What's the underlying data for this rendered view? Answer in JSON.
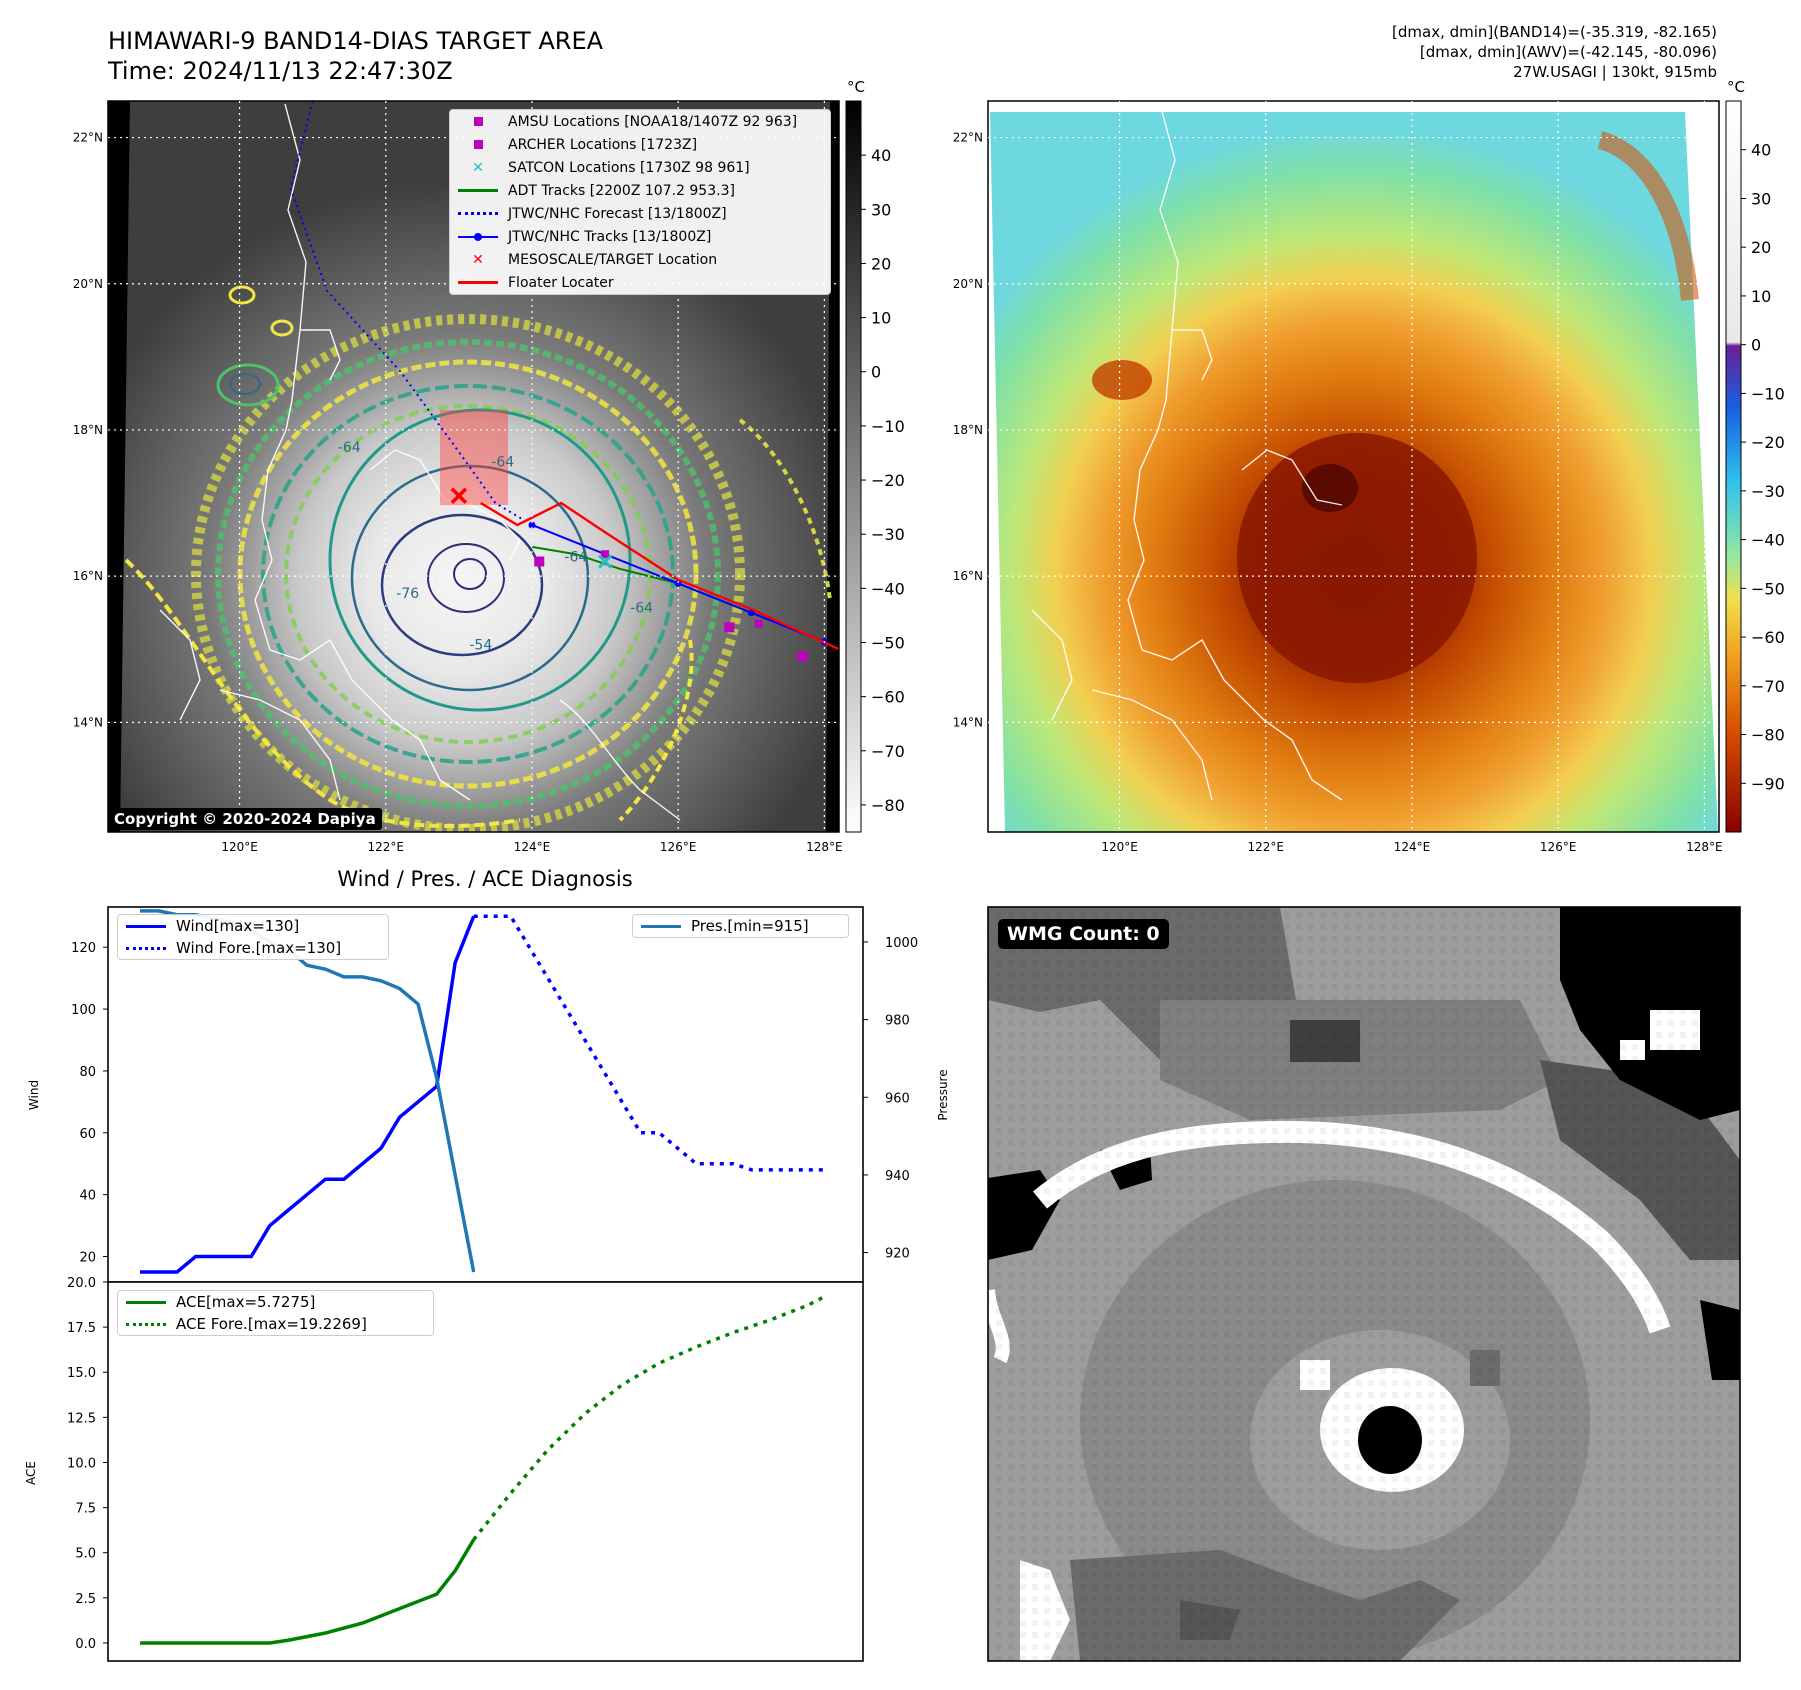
{
  "header": {
    "title_line1": "HIMAWARI-9 BAND14-DIAS TARGET AREA",
    "title_line2": "Time: 2024/11/13 22:47:30Z",
    "info_line1": "[dmax, dmin](BAND14)=(-35.319, -82.165)",
    "info_line2": "[dmax, dmin](AWV)=(-42.145, -80.096)",
    "info_line3": "27W.USAGI | 130kt, 915mb"
  },
  "map_axes": {
    "lon_labels": [
      "120°E",
      "122°E",
      "124°E",
      "126°E",
      "128°E"
    ],
    "lat_labels": [
      "22°N",
      "20°N",
      "18°N",
      "16°N",
      "14°N"
    ],
    "lon_range": [
      118.2,
      128.2
    ],
    "lat_range": [
      12.5,
      22.5
    ]
  },
  "ir_panel": {
    "colorbar_unit": "°C",
    "colorbar_ticks": [
      "40",
      "30",
      "20",
      "10",
      "0",
      "−10",
      "−20",
      "−30",
      "−40",
      "−50",
      "−60",
      "−70",
      "−80"
    ],
    "colorbar_range": [
      -85,
      50
    ],
    "copyright": "Copyright © 2020-2024 Dapiya",
    "legend": [
      {
        "label": "AMSU Locations [NOAA18/1407Z 92 963]",
        "symbol": "square",
        "color": "#c000c0"
      },
      {
        "label": "ARCHER Locations [1723Z]",
        "symbol": "square",
        "color": "#c000c0"
      },
      {
        "label": "SATCON Locations [1730Z 98 961]",
        "symbol": "x",
        "color": "#20c0c0"
      },
      {
        "label": "ADT Tracks [2200Z 107.2 953.3]",
        "symbol": "line",
        "color": "#008000"
      },
      {
        "label": "JTWC/NHC Forecast [13/1800Z]",
        "symbol": "dotted",
        "color": "#0000ff"
      },
      {
        "label": "JTWC/NHC Tracks [13/1800Z]",
        "symbol": "dotline",
        "color": "#0000ff"
      },
      {
        "label": "MESOSCALE/TARGET Location",
        "symbol": "x",
        "color": "#ff0000"
      },
      {
        "label": "Floater Locater",
        "symbol": "line",
        "color": "#ff0000"
      }
    ],
    "contour_labels": [
      "-64",
      "-64",
      "-64",
      "-76",
      "-54",
      "-64"
    ],
    "storm_center": {
      "lon": 124.0,
      "lat": 16.7
    },
    "forecast_track": [
      [
        121.0,
        22.5
      ],
      [
        120.7,
        21.3
      ],
      [
        121.2,
        19.9
      ],
      [
        122.2,
        18.8
      ],
      [
        123.0,
        17.7
      ],
      [
        123.5,
        17.0
      ],
      [
        124.0,
        16.7
      ]
    ],
    "jtwc_track": [
      [
        124.0,
        16.7
      ],
      [
        125.0,
        16.3
      ],
      [
        126.0,
        15.9
      ],
      [
        127.0,
        15.5
      ],
      [
        128.0,
        15.1
      ]
    ],
    "adt_track": [
      [
        124.0,
        16.4
      ],
      [
        124.6,
        16.3
      ],
      [
        125.2,
        16.1
      ],
      [
        126.0,
        15.9
      ],
      [
        127.0,
        15.5
      ]
    ],
    "floater_track": [
      [
        123.3,
        17.0
      ],
      [
        123.8,
        16.7
      ],
      [
        124.4,
        17.0
      ],
      [
        125.0,
        16.6
      ],
      [
        126.0,
        15.95
      ],
      [
        127.0,
        15.55
      ],
      [
        128.2,
        15.0
      ]
    ],
    "amsu_points": [
      [
        124.1,
        16.2
      ],
      [
        126.7,
        15.3
      ],
      [
        127.7,
        14.9
      ]
    ],
    "archer_points": [
      [
        125.0,
        16.3
      ],
      [
        127.1,
        15.35
      ]
    ],
    "satcon_points": [
      [
        125.0,
        16.2
      ]
    ],
    "target_point": {
      "lon": 123.0,
      "lat": 17.1
    }
  },
  "awv_panel": {
    "colorbar_unit": "°C",
    "colorbar_ticks": [
      "40",
      "30",
      "20",
      "10",
      "0",
      "−10",
      "−20",
      "−30",
      "−40",
      "−50",
      "−60",
      "−70",
      "−80",
      "−90"
    ],
    "colorbar_range": [
      -100,
      50
    ]
  },
  "wind_pressure_chart": {
    "type": "line",
    "title": "Wind / Pres. / ACE Diagnosis",
    "ylabel_left": "Wind",
    "ylabel_right": "Pressure",
    "wind_yticks": [
      20,
      40,
      60,
      80,
      100,
      120
    ],
    "pressure_yticks": [
      920,
      940,
      960,
      980,
      1000
    ],
    "ylim_wind": [
      15,
      133
    ],
    "ylim_pressure": [
      915,
      1009
    ],
    "xlim": [
      0,
      39
    ],
    "legend_left": [
      {
        "label": "Wind[max=130]",
        "style": "solid",
        "color": "#0000ff"
      },
      {
        "label": "Wind Fore.[max=130]",
        "style": "dotted",
        "color": "#0000ff"
      }
    ],
    "legend_right": [
      {
        "label": "Pres.[min=915]",
        "style": "solid",
        "color": "#1f77b4"
      }
    ],
    "series": [
      {
        "name": "Wind",
        "x": [
          0,
          2,
          3,
          4,
          5,
          6,
          7,
          8,
          9,
          10,
          11,
          12,
          13,
          14,
          15,
          16,
          17,
          18
        ],
        "values": [
          15,
          15,
          20,
          20,
          20,
          20,
          30,
          35,
          40,
          45,
          45,
          50,
          55,
          65,
          70,
          75,
          115,
          130
        ]
      },
      {
        "name": "Wind Fore.",
        "x": [
          18,
          20,
          21,
          22,
          23,
          24,
          25,
          26,
          27,
          28,
          29,
          30,
          31,
          32,
          33,
          34,
          35,
          36,
          37
        ],
        "values": [
          130,
          130,
          120,
          110,
          100,
          90,
          80,
          70,
          60,
          60,
          55,
          50,
          50,
          50,
          48,
          48,
          48,
          48,
          48
        ]
      },
      {
        "name": "Pres.",
        "x": [
          0,
          1,
          2,
          3,
          4,
          5,
          6,
          7,
          8,
          9,
          10,
          11,
          12,
          13,
          14,
          15,
          16,
          17,
          18
        ],
        "values": [
          1008,
          1008,
          1007,
          1007,
          1006,
          1005,
          1003,
          1000,
          998,
          994,
          993,
          991,
          991,
          990,
          988,
          984,
          965,
          940,
          915
        ]
      }
    ]
  },
  "ace_chart": {
    "type": "line",
    "ylabel": "ACE",
    "yticks": [
      "0.0",
      "2.5",
      "5.0",
      "7.5",
      "10.0",
      "12.5",
      "15.0",
      "17.5",
      "20.0"
    ],
    "ylim": [
      -1.0,
      20.0
    ],
    "xlim": [
      0,
      39
    ],
    "legend": [
      {
        "label": "ACE[max=5.7275]",
        "style": "solid",
        "color": "#008000"
      },
      {
        "label": "ACE Fore.[max=19.2269]",
        "style": "dotted",
        "color": "#008000"
      }
    ],
    "series": [
      {
        "name": "ACE",
        "x": [
          0,
          4,
          7,
          8,
          10,
          12,
          14,
          16,
          17,
          18
        ],
        "values": [
          0,
          0,
          0,
          0.15,
          0.55,
          1.1,
          1.9,
          2.7,
          4.0,
          5.7275
        ]
      },
      {
        "name": "ACE Fore.",
        "x": [
          18,
          20,
          22,
          24,
          26,
          28,
          30,
          32,
          34,
          36,
          37
        ],
        "values": [
          5.7275,
          8.3,
          10.7,
          12.7,
          14.3,
          15.5,
          16.4,
          17.2,
          17.9,
          18.7,
          19.2269
        ]
      }
    ]
  },
  "wmg_panel": {
    "badge": "WMG Count: 0"
  },
  "colors": {
    "wind": "#0000ff",
    "pressure": "#1f77b4",
    "ace": "#008000",
    "floater": "#ff0000"
  }
}
